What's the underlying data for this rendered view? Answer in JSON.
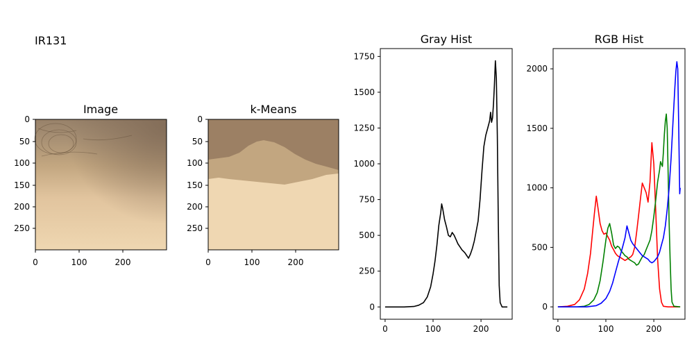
{
  "suptitle": "IR131",
  "panels": {
    "image": {
      "title": "Image",
      "xticks": [
        "0",
        "100",
        "200"
      ],
      "yticks": [
        "0",
        "50",
        "100",
        "150",
        "200",
        "250"
      ]
    },
    "kmeans": {
      "title": "k-Means",
      "xticks": [
        "0",
        "100",
        "200"
      ],
      "yticks": [
        "0",
        "50",
        "100",
        "150",
        "200",
        "250"
      ]
    }
  },
  "colors": {
    "gray": "#000000",
    "red": "#ff0000",
    "green": "#008000",
    "blue": "#0000ff"
  },
  "chart_data": [
    {
      "type": "line",
      "title": "Gray Hist",
      "xlabel": "",
      "ylabel": "",
      "xlim": [
        -10,
        265
      ],
      "ylim": [
        -86,
        1805
      ],
      "xticks": [
        0,
        100,
        200
      ],
      "yticks": [
        0,
        250,
        500,
        750,
        1000,
        1250,
        1500,
        1750
      ],
      "series": [
        {
          "color": "#000000",
          "points": [
            [
              0,
              0
            ],
            [
              40,
              0
            ],
            [
              60,
              3
            ],
            [
              70,
              12
            ],
            [
              80,
              30
            ],
            [
              88,
              70
            ],
            [
              95,
              140
            ],
            [
              100,
              230
            ],
            [
              104,
              320
            ],
            [
              108,
              430
            ],
            [
              112,
              570
            ],
            [
              116,
              660
            ],
            [
              118,
              720
            ],
            [
              120,
              690
            ],
            [
              124,
              610
            ],
            [
              128,
              560
            ],
            [
              132,
              500
            ],
            [
              136,
              490
            ],
            [
              140,
              520
            ],
            [
              144,
              500
            ],
            [
              148,
              470
            ],
            [
              152,
              440
            ],
            [
              156,
              420
            ],
            [
              160,
              400
            ],
            [
              166,
              380
            ],
            [
              170,
              360
            ],
            [
              174,
              340
            ],
            [
              178,
              370
            ],
            [
              182,
              410
            ],
            [
              186,
              460
            ],
            [
              190,
              530
            ],
            [
              194,
              600
            ],
            [
              198,
              750
            ],
            [
              202,
              950
            ],
            [
              206,
              1120
            ],
            [
              210,
              1200
            ],
            [
              214,
              1250
            ],
            [
              218,
              1300
            ],
            [
              220,
              1360
            ],
            [
              222,
              1290
            ],
            [
              224,
              1320
            ],
            [
              226,
              1420
            ],
            [
              228,
              1550
            ],
            [
              230,
              1720
            ],
            [
              232,
              1600
            ],
            [
              234,
              1200
            ],
            [
              236,
              600
            ],
            [
              238,
              150
            ],
            [
              240,
              30
            ],
            [
              244,
              0
            ],
            [
              255,
              0
            ]
          ]
        }
      ]
    },
    {
      "type": "line",
      "title": "RGB Hist",
      "xlabel": "",
      "ylabel": "",
      "xlim": [
        -10,
        265
      ],
      "ylim": [
        -104,
        2170
      ],
      "xticks": [
        0,
        100,
        200
      ],
      "yticks": [
        0,
        500,
        1000,
        1500,
        2000
      ],
      "series": [
        {
          "color": "#ff0000",
          "points": [
            [
              0,
              0
            ],
            [
              20,
              5
            ],
            [
              35,
              20
            ],
            [
              45,
              60
            ],
            [
              55,
              150
            ],
            [
              62,
              280
            ],
            [
              68,
              450
            ],
            [
              72,
              620
            ],
            [
              76,
              780
            ],
            [
              80,
              930
            ],
            [
              84,
              820
            ],
            [
              88,
              700
            ],
            [
              92,
              640
            ],
            [
              96,
              610
            ],
            [
              100,
              620
            ],
            [
              104,
              590
            ],
            [
              108,
              560
            ],
            [
              112,
              510
            ],
            [
              116,
              480
            ],
            [
              120,
              450
            ],
            [
              124,
              430
            ],
            [
              128,
              420
            ],
            [
              132,
              410
            ],
            [
              136,
              400
            ],
            [
              140,
              390
            ],
            [
              144,
              400
            ],
            [
              148,
              410
            ],
            [
              152,
              420
            ],
            [
              156,
              440
            ],
            [
              160,
              500
            ],
            [
              164,
              620
            ],
            [
              168,
              760
            ],
            [
              172,
              900
            ],
            [
              176,
              1040
            ],
            [
              180,
              1000
            ],
            [
              184,
              960
            ],
            [
              188,
              880
            ],
            [
              192,
              1050
            ],
            [
              196,
              1380
            ],
            [
              200,
              1200
            ],
            [
              204,
              800
            ],
            [
              208,
              400
            ],
            [
              212,
              150
            ],
            [
              216,
              40
            ],
            [
              220,
              5
            ],
            [
              230,
              0
            ],
            [
              255,
              0
            ]
          ]
        },
        {
          "color": "#008000",
          "points": [
            [
              0,
              0
            ],
            [
              40,
              0
            ],
            [
              55,
              5
            ],
            [
              65,
              20
            ],
            [
              75,
              60
            ],
            [
              82,
              120
            ],
            [
              88,
              220
            ],
            [
              94,
              380
            ],
            [
              100,
              560
            ],
            [
              104,
              660
            ],
            [
              108,
              700
            ],
            [
              112,
              620
            ],
            [
              116,
              520
            ],
            [
              120,
              490
            ],
            [
              124,
              510
            ],
            [
              128,
              500
            ],
            [
              132,
              470
            ],
            [
              136,
              450
            ],
            [
              140,
              430
            ],
            [
              144,
              420
            ],
            [
              148,
              400
            ],
            [
              152,
              390
            ],
            [
              156,
              380
            ],
            [
              160,
              370
            ],
            [
              164,
              350
            ],
            [
              168,
              360
            ],
            [
              172,
              390
            ],
            [
              176,
              420
            ],
            [
              180,
              440
            ],
            [
              184,
              480
            ],
            [
              188,
              520
            ],
            [
              192,
              560
            ],
            [
              196,
              640
            ],
            [
              200,
              760
            ],
            [
              204,
              900
            ],
            [
              208,
              1050
            ],
            [
              212,
              1150
            ],
            [
              214,
              1220
            ],
            [
              216,
              1200
            ],
            [
              218,
              1180
            ],
            [
              220,
              1300
            ],
            [
              222,
              1450
            ],
            [
              224,
              1560
            ],
            [
              226,
              1620
            ],
            [
              228,
              1500
            ],
            [
              230,
              1100
            ],
            [
              232,
              700
            ],
            [
              234,
              400
            ],
            [
              236,
              150
            ],
            [
              238,
              40
            ],
            [
              242,
              5
            ],
            [
              255,
              0
            ]
          ]
        },
        {
          "color": "#0000ff",
          "points": [
            [
              0,
              0
            ],
            [
              60,
              0
            ],
            [
              80,
              10
            ],
            [
              90,
              30
            ],
            [
              100,
              70
            ],
            [
              108,
              130
            ],
            [
              114,
              200
            ],
            [
              120,
              290
            ],
            [
              126,
              380
            ],
            [
              132,
              460
            ],
            [
              136,
              520
            ],
            [
              140,
              580
            ],
            [
              144,
              680
            ],
            [
              148,
              620
            ],
            [
              152,
              560
            ],
            [
              156,
              530
            ],
            [
              160,
              510
            ],
            [
              164,
              490
            ],
            [
              168,
              470
            ],
            [
              172,
              450
            ],
            [
              176,
              430
            ],
            [
              180,
              420
            ],
            [
              184,
              410
            ],
            [
              188,
              400
            ],
            [
              192,
              380
            ],
            [
              196,
              370
            ],
            [
              200,
              380
            ],
            [
              204,
              400
            ],
            [
              208,
              420
            ],
            [
              212,
              460
            ],
            [
              216,
              520
            ],
            [
              220,
              580
            ],
            [
              224,
              680
            ],
            [
              228,
              820
            ],
            [
              232,
              1000
            ],
            [
              236,
              1250
            ],
            [
              240,
              1550
            ],
            [
              244,
              1850
            ],
            [
              246,
              1980
            ],
            [
              248,
              2060
            ],
            [
              250,
              2000
            ],
            [
              252,
              1500
            ],
            [
              254,
              950
            ],
            [
              255,
              1000
            ]
          ]
        }
      ]
    }
  ]
}
